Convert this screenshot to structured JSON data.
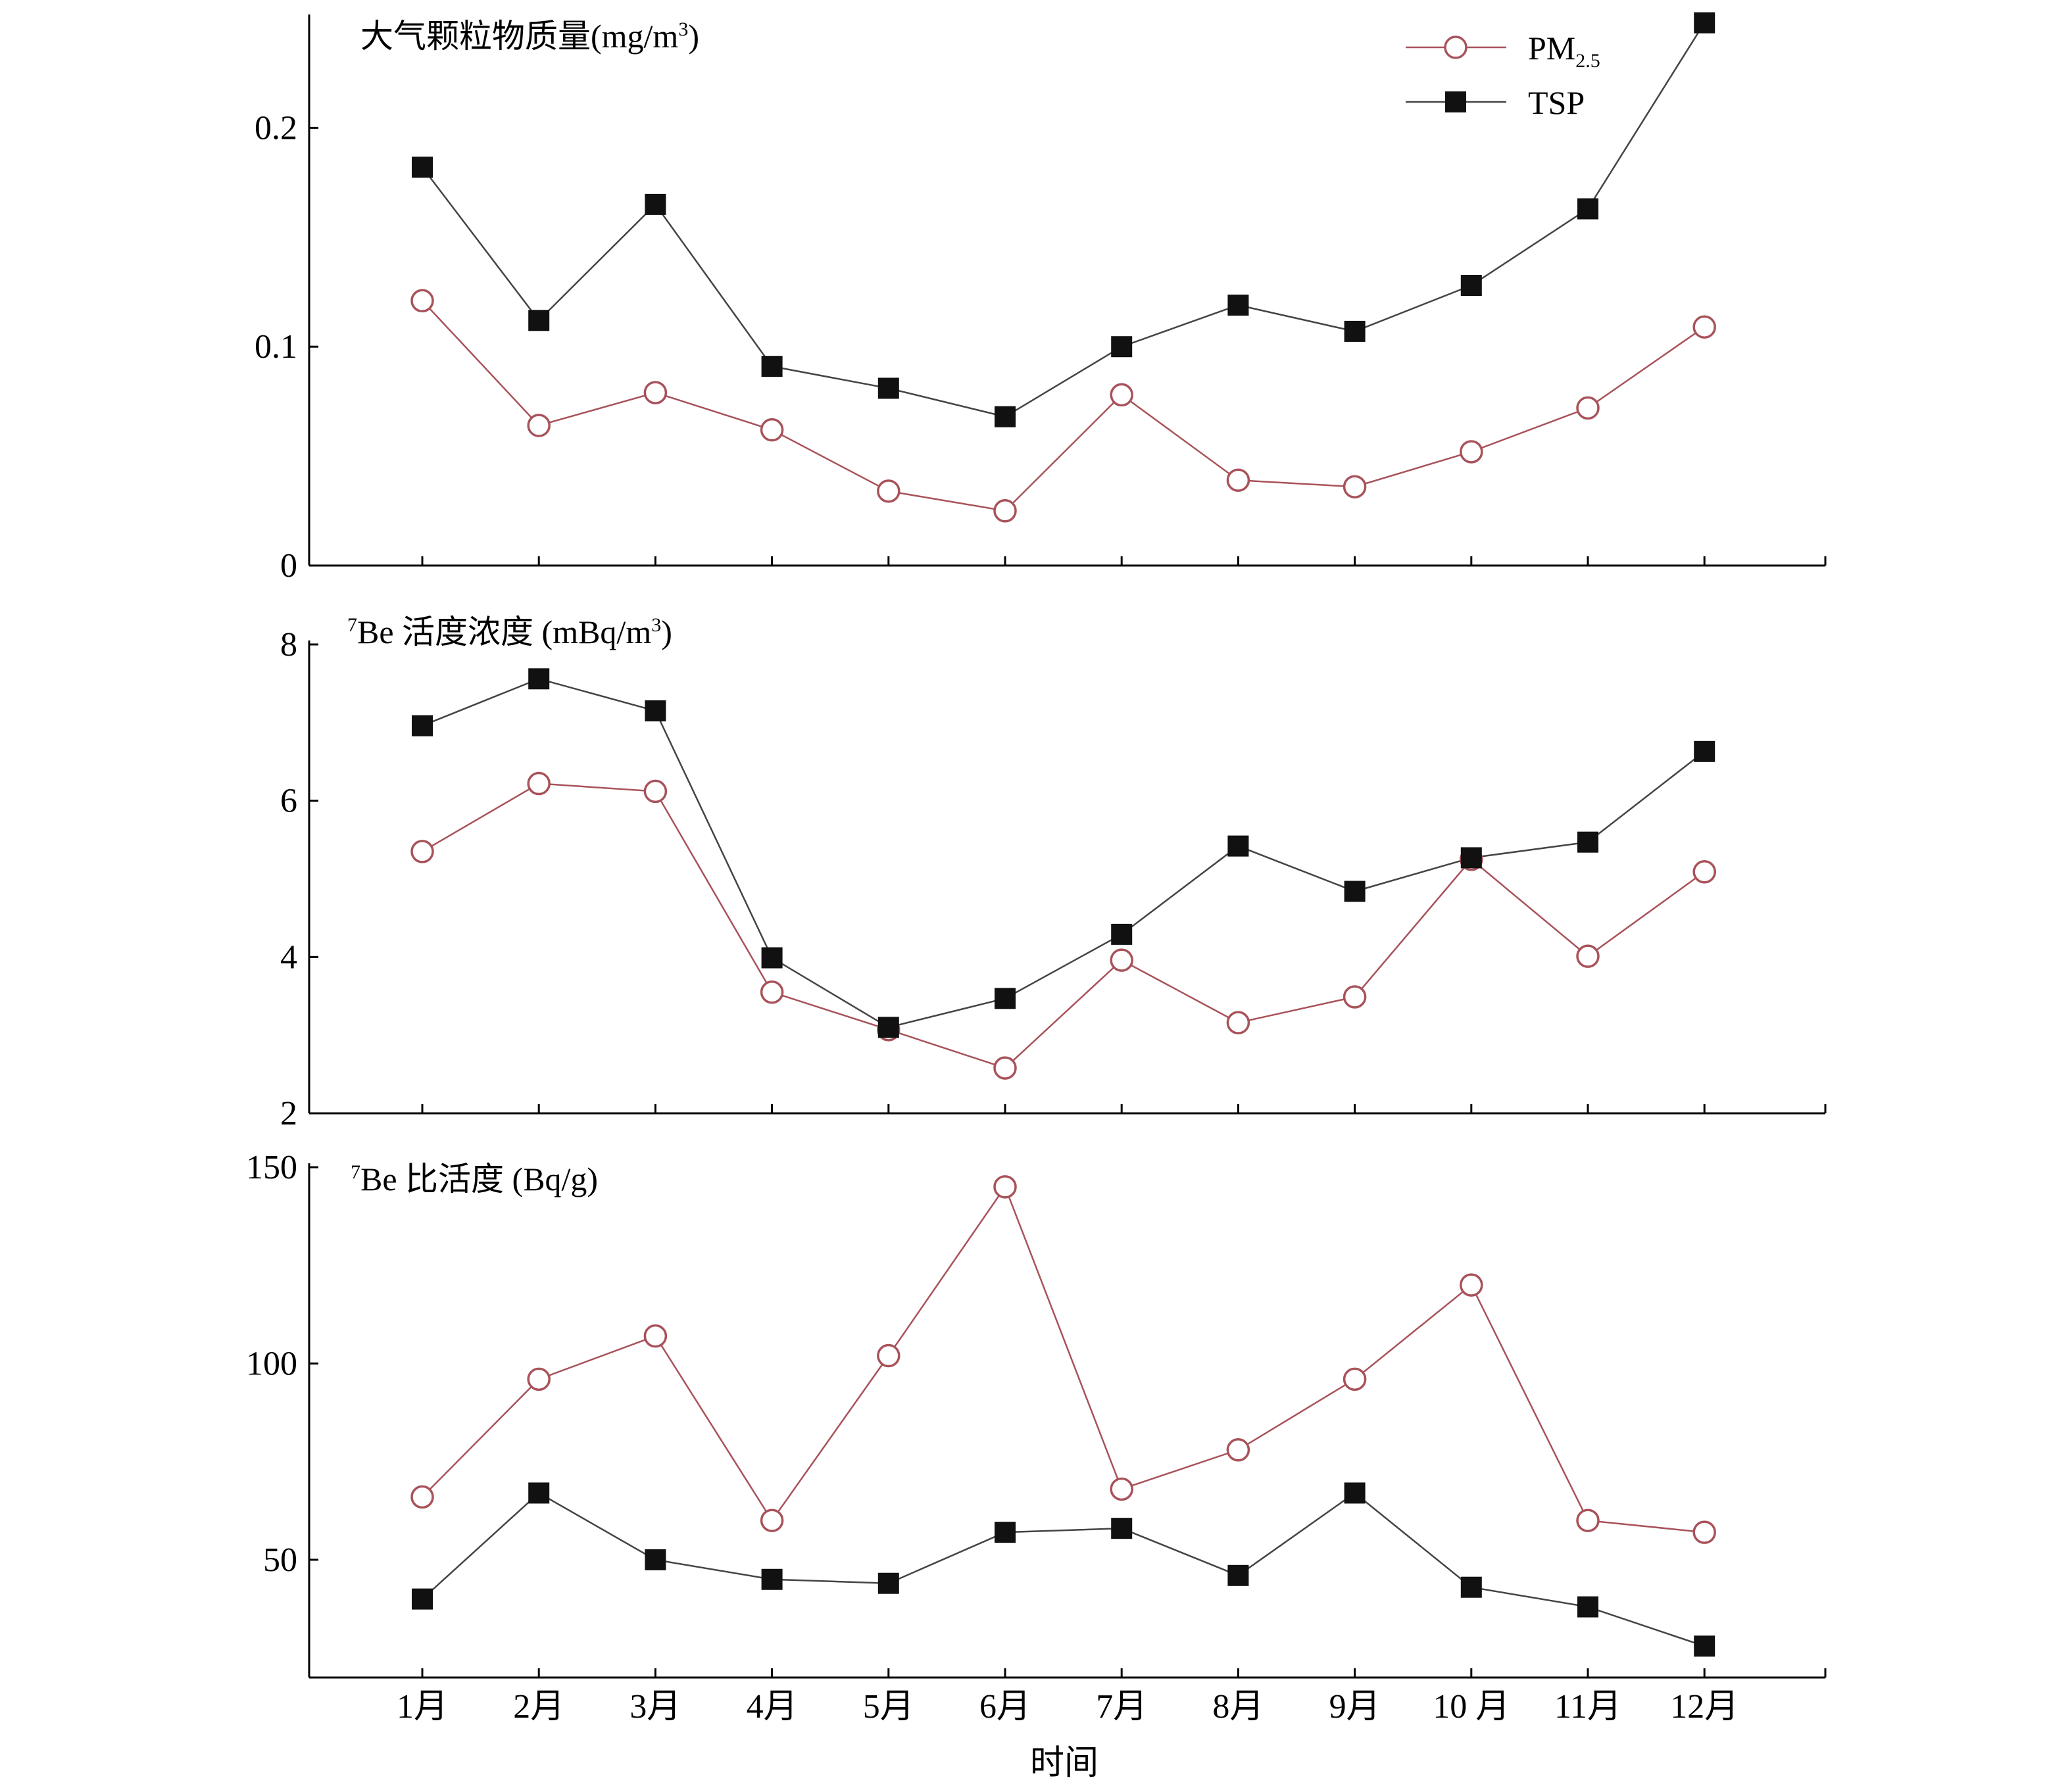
{
  "chart_data": {
    "type": "line",
    "categories": [
      "1月",
      "2月",
      "3月",
      "4月",
      "5月",
      "6月",
      "7月",
      "8月",
      "9月",
      "10 月",
      "11月",
      "12月"
    ],
    "xlabel": "时间",
    "colors": {
      "pm25": "#a8525a",
      "tsp": "#444444",
      "marker_fill": "#ffffff",
      "tsp_marker": "#111111"
    },
    "legend": {
      "placement": "top-right",
      "entries": [
        {
          "key": "pm25",
          "label_main": "PM",
          "label_sub": "2.5",
          "marker": "circle-icon"
        },
        {
          "key": "tsp",
          "label_main": "TSP",
          "label_sub": "",
          "marker": "square-icon"
        }
      ]
    },
    "panels": [
      {
        "id": "mass",
        "title_sup": "",
        "title": "大气颗粒物质量(mg/m",
        "title_suffix_sup": "3",
        "title_end": ")",
        "ylim": [
          0,
          0.25
        ],
        "yticks": [
          0,
          0.1,
          0.2
        ],
        "ytick_labels": [
          "0",
          "0.1",
          "0.2"
        ],
        "series": [
          {
            "name": "PM2.5",
            "key": "pm25",
            "values": [
              0.121,
              0.064,
              0.079,
              0.062,
              0.034,
              0.025,
              0.078,
              0.039,
              0.036,
              0.052,
              0.072,
              0.109
            ]
          },
          {
            "name": "TSP",
            "key": "tsp",
            "values": [
              0.182,
              0.112,
              0.165,
              0.091,
              0.081,
              0.068,
              0.1,
              0.119,
              0.107,
              0.128,
              0.163,
              0.248
            ]
          }
        ]
      },
      {
        "id": "activity",
        "title_sup": "7",
        "title": "Be 活度浓度 (mBq/m",
        "title_suffix_sup": "3",
        "title_end": ")",
        "ylim": [
          2,
          8
        ],
        "yticks": [
          2,
          4,
          6,
          8
        ],
        "ytick_labels": [
          "2",
          "4",
          "6",
          "8"
        ],
        "series": [
          {
            "name": "PM2.5",
            "key": "pm25",
            "values": [
              5.35,
              6.22,
              6.12,
              3.55,
              3.07,
              2.58,
              3.96,
              3.16,
              3.49,
              5.25,
              4.01,
              5.09
            ]
          },
          {
            "name": "TSP",
            "key": "tsp",
            "values": [
              6.96,
              7.56,
              7.15,
              3.99,
              3.1,
              3.47,
              4.29,
              5.42,
              4.84,
              5.27,
              5.47,
              6.63
            ]
          }
        ]
      },
      {
        "id": "specific",
        "title_sup": "7",
        "title": "Be 比活度 (Bq/g)",
        "title_suffix_sup": "",
        "title_end": "",
        "ylim": [
          20,
          150
        ],
        "yticks": [
          50,
          100,
          150
        ],
        "ytick_labels": [
          "50",
          "100",
          "150"
        ],
        "series": [
          {
            "name": "PM2.5",
            "key": "pm25",
            "values": [
              66,
              96,
              107,
              60,
              102,
              145,
              68,
              78,
              96,
              120,
              60,
              57
            ]
          },
          {
            "name": "TSP",
            "key": "tsp",
            "values": [
              40,
              67,
              50,
              45,
              44,
              57,
              58,
              46,
              67,
              43,
              38,
              28
            ]
          }
        ]
      }
    ]
  }
}
